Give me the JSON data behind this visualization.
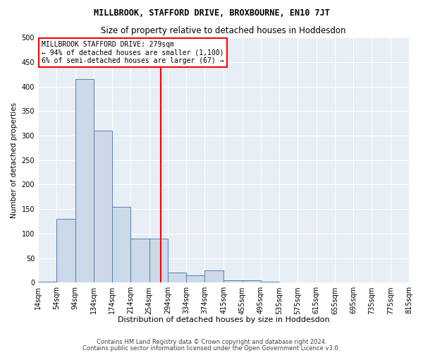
{
  "title": "MILLBROOK, STAFFORD DRIVE, BROXBOURNE, EN10 7JT",
  "subtitle": "Size of property relative to detached houses in Hoddesdon",
  "xlabel": "Distribution of detached houses by size in Hoddesdon",
  "ylabel": "Number of detached properties",
  "bin_edges": [
    14,
    54,
    94,
    134,
    174,
    214,
    254,
    294,
    334,
    374,
    415,
    455,
    495,
    535,
    575,
    615,
    655,
    695,
    735,
    775,
    815
  ],
  "bin_labels": [
    "14sqm",
    "54sqm",
    "94sqm",
    "134sqm",
    "174sqm",
    "214sqm",
    "254sqm",
    "294sqm",
    "334sqm",
    "374sqm",
    "415sqm",
    "455sqm",
    "495sqm",
    "535sqm",
    "575sqm",
    "615sqm",
    "655sqm",
    "695sqm",
    "735sqm",
    "775sqm",
    "815sqm"
  ],
  "bar_heights": [
    2,
    130,
    415,
    310,
    155,
    90,
    90,
    20,
    15,
    25,
    5,
    5,
    2,
    0,
    1,
    0,
    0,
    0,
    1,
    0
  ],
  "bar_color": "#ccd9e8",
  "bar_edge_color": "#5580b0",
  "vline_x": 279,
  "vline_color": "red",
  "ylim": [
    0,
    500
  ],
  "yticks": [
    0,
    50,
    100,
    150,
    200,
    250,
    300,
    350,
    400,
    450,
    500
  ],
  "annotation_title": "MILLBROOK STAFFORD DRIVE: 279sqm",
  "annotation_line1": "← 94% of detached houses are smaller (1,100)",
  "annotation_line2": "6% of semi-detached houses are larger (67) →",
  "footer1": "Contains HM Land Registry data © Crown copyright and database right 2024.",
  "footer2": "Contains public sector information licensed under the Open Government Licence v3.0.",
  "plot_bg_color": "#e8eef5"
}
